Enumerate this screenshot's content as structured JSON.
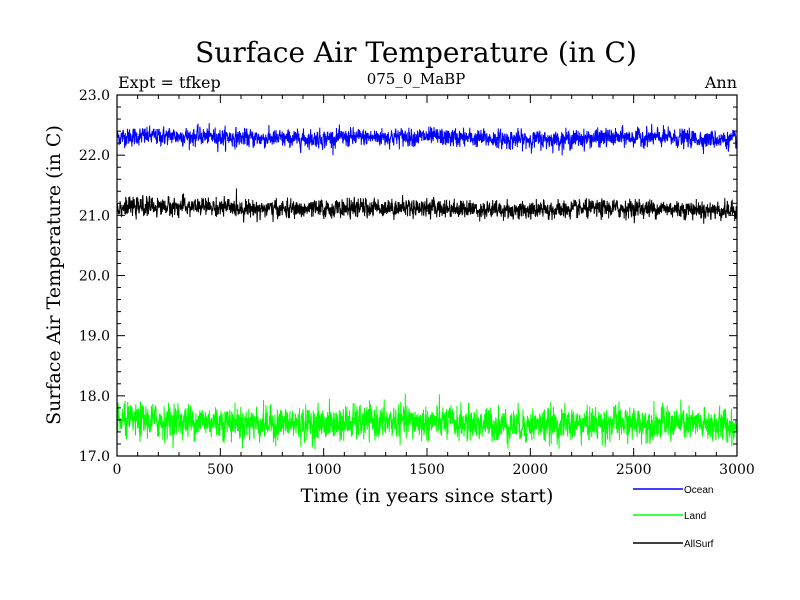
{
  "chart_data": {
    "type": "line",
    "title": "Surface Air Temperature (in C)",
    "subtitle": "075_0_MaBP",
    "left_label": "Expt = tfkep",
    "right_label": "Ann",
    "xlabel": "Time (in years since start)",
    "ylabel": "Surface Air Temperature (in C)",
    "xlim": [
      0,
      3000
    ],
    "ylim": [
      17.0,
      23.0
    ],
    "x_ticks": [
      "0",
      "500",
      "1000",
      "1500",
      "2000",
      "2500",
      "3000"
    ],
    "y_ticks": [
      "17.0",
      "18.0",
      "19.0",
      "20.0",
      "21.0",
      "22.0",
      "23.0"
    ],
    "grid": false,
    "legend_position": "bottom-right",
    "series": [
      {
        "name": "Ocean",
        "color": "#0000ff",
        "mean": 22.3,
        "noise_sd": 0.07,
        "drift": -0.03
      },
      {
        "name": "Land",
        "color": "#00ff00",
        "mean": 17.57,
        "noise_sd": 0.13,
        "drift": -0.05
      },
      {
        "name": "AllSurf",
        "color": "#000000",
        "mean": 21.13,
        "noise_sd": 0.07,
        "drift": -0.04
      }
    ]
  }
}
